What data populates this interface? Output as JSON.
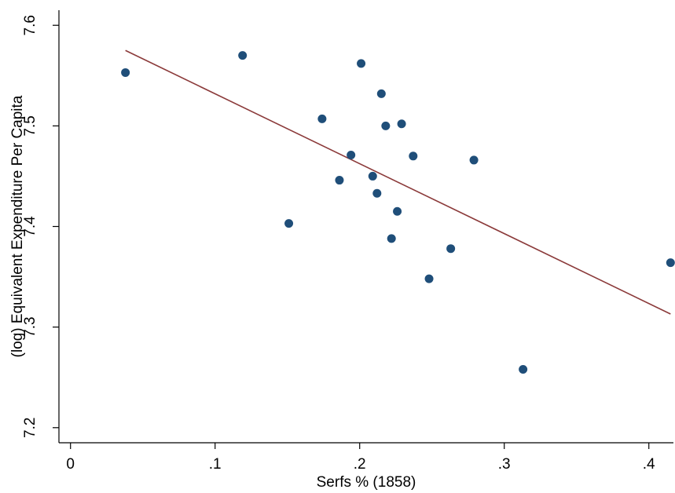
{
  "chart_data": {
    "type": "scatter",
    "title": "",
    "xlabel": "Serfs % (1858)",
    "ylabel": "(log) Equivalent Expenditure Per Capita",
    "xlim": [
      -0.008,
      0.417
    ],
    "ylim": [
      7.185,
      7.615
    ],
    "x_ticks": [
      {
        "value": 0,
        "label": "0"
      },
      {
        "value": 0.1,
        "label": ".1"
      },
      {
        "value": 0.2,
        "label": ".2"
      },
      {
        "value": 0.3,
        "label": ".3"
      },
      {
        "value": 0.4,
        "label": ".4"
      }
    ],
    "y_ticks": [
      {
        "value": 7.2,
        "label": "7.2"
      },
      {
        "value": 7.3,
        "label": "7.3"
      },
      {
        "value": 7.4,
        "label": "7.4"
      },
      {
        "value": 7.5,
        "label": "7.5"
      },
      {
        "value": 7.6,
        "label": "7.6"
      }
    ],
    "grid": false,
    "legend": "none",
    "points": [
      {
        "x": 0.038,
        "y": 7.553
      },
      {
        "x": 0.119,
        "y": 7.57
      },
      {
        "x": 0.151,
        "y": 7.403
      },
      {
        "x": 0.174,
        "y": 7.507
      },
      {
        "x": 0.186,
        "y": 7.446
      },
      {
        "x": 0.194,
        "y": 7.471
      },
      {
        "x": 0.201,
        "y": 7.562
      },
      {
        "x": 0.209,
        "y": 7.45
      },
      {
        "x": 0.212,
        "y": 7.433
      },
      {
        "x": 0.215,
        "y": 7.532
      },
      {
        "x": 0.218,
        "y": 7.5
      },
      {
        "x": 0.222,
        "y": 7.388
      },
      {
        "x": 0.226,
        "y": 7.415
      },
      {
        "x": 0.229,
        "y": 7.502
      },
      {
        "x": 0.237,
        "y": 7.47
      },
      {
        "x": 0.248,
        "y": 7.348
      },
      {
        "x": 0.263,
        "y": 7.378
      },
      {
        "x": 0.279,
        "y": 7.466
      },
      {
        "x": 0.313,
        "y": 7.258
      },
      {
        "x": 0.415,
        "y": 7.364
      }
    ],
    "fit_line": {
      "x": [
        0.038,
        0.415
      ],
      "y": [
        7.575,
        7.313
      ]
    },
    "colors": {
      "points": "#1f4e79",
      "fit_line": "#8b3a3a",
      "axes": "#000000"
    }
  }
}
